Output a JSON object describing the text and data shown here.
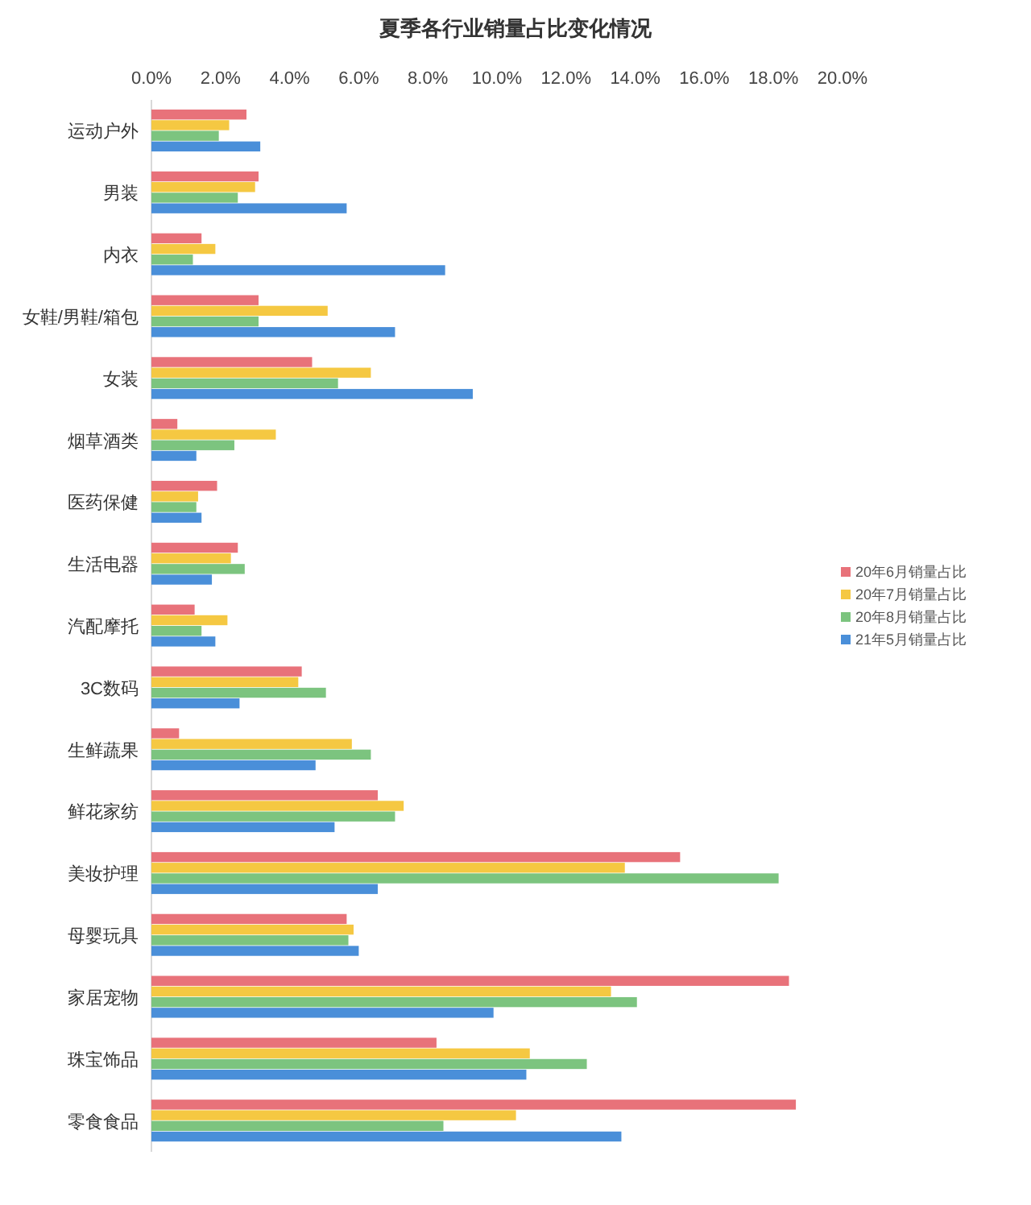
{
  "chart_data": {
    "type": "bar",
    "orientation": "horizontal",
    "title": "夏季各行业销量占比变化情况",
    "categories": [
      "运动户外",
      "男装",
      "内衣",
      "女鞋/男鞋/箱包",
      "女装",
      "烟草酒类",
      "医药保健",
      "生活电器",
      "汽配摩托",
      "3C数码",
      "生鲜蔬果",
      "鲜花家纺",
      "美妆护理",
      "母婴玩具",
      "家居宠物",
      "珠宝饰品",
      "零食食品"
    ],
    "series": [
      {
        "name": "20年6月销量占比",
        "color": "#e8727a",
        "values": [
          2.75,
          3.1,
          1.45,
          3.1,
          4.65,
          0.75,
          1.9,
          2.5,
          1.25,
          4.35,
          0.8,
          6.55,
          15.3,
          5.65,
          18.45,
          8.25,
          18.65
        ]
      },
      {
        "name": "20年7月销量占比",
        "color": "#f5c842",
        "values": [
          2.25,
          3.0,
          1.85,
          5.1,
          6.35,
          3.6,
          1.35,
          2.3,
          2.2,
          4.25,
          5.8,
          7.3,
          13.7,
          5.85,
          13.3,
          10.95,
          10.55
        ]
      },
      {
        "name": "20年8月销量占比",
        "color": "#7cc47f",
        "values": [
          1.95,
          2.5,
          1.2,
          3.1,
          5.4,
          2.4,
          1.3,
          2.7,
          1.45,
          5.05,
          6.35,
          7.05,
          18.15,
          5.7,
          14.05,
          12.6,
          8.45
        ]
      },
      {
        "name": "21年5月销量占比",
        "color": "#4a8fd9",
        "values": [
          3.15,
          5.65,
          8.5,
          7.05,
          9.3,
          1.3,
          1.45,
          1.75,
          1.85,
          2.55,
          4.75,
          5.3,
          6.55,
          6.0,
          9.9,
          10.85,
          13.6
        ]
      }
    ],
    "xlim": [
      0,
      20
    ],
    "xticks": [
      {
        "value": 0,
        "label": "0.0%"
      },
      {
        "value": 2,
        "label": "2.0%"
      },
      {
        "value": 4,
        "label": "4.0%"
      },
      {
        "value": 6,
        "label": "6.0%"
      },
      {
        "value": 8,
        "label": "8.0%"
      },
      {
        "value": 10,
        "label": "10.0%"
      },
      {
        "value": 12,
        "label": "12.0%"
      },
      {
        "value": 14,
        "label": "14.0%"
      },
      {
        "value": 16,
        "label": "16.0%"
      },
      {
        "value": 18,
        "label": "18.0%"
      },
      {
        "value": 20,
        "label": "20.0%"
      }
    ],
    "legend": "right"
  }
}
